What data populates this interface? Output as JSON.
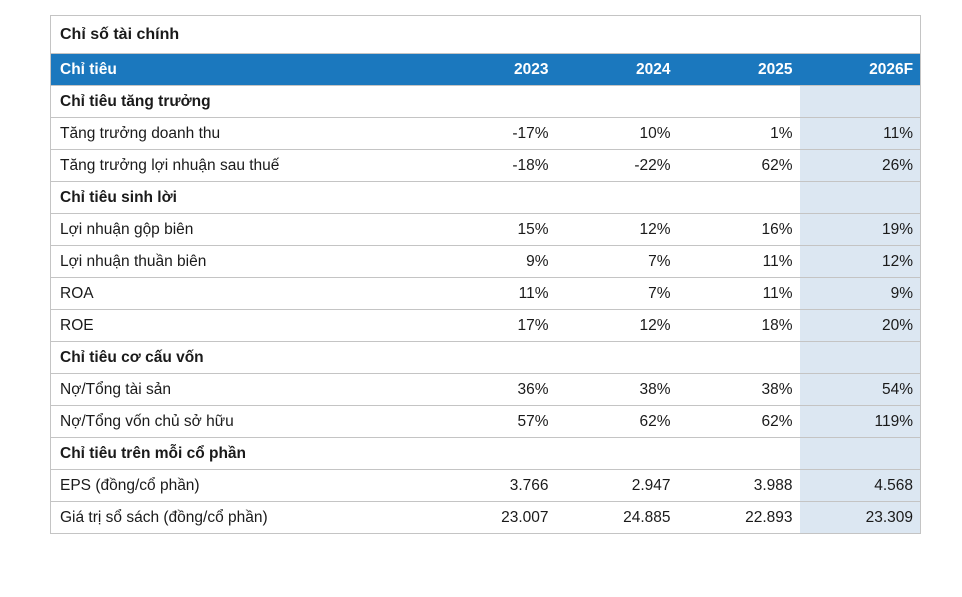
{
  "title": "Chỉ số tài chính",
  "colors": {
    "header_bg": "#1B78BE",
    "header_text": "#FFFFFF",
    "forecast_column_bg": "#DCE7F2",
    "row_border": "#C4C4C4",
    "text": "#1A1A1A"
  },
  "table": {
    "header": {
      "label": "Chỉ tiêu",
      "years": [
        "2023",
        "2024",
        "2025",
        "2026F"
      ]
    },
    "rows": [
      {
        "type": "section",
        "label": "Chỉ tiêu tăng trưởng",
        "values": [
          "",
          "",
          "",
          ""
        ]
      },
      {
        "type": "data",
        "label": "Tăng trưởng doanh thu",
        "values": [
          "-17%",
          "10%",
          "1%",
          "11%"
        ]
      },
      {
        "type": "data",
        "label": "Tăng trưởng lợi nhuận sau thuế",
        "values": [
          "-18%",
          "-22%",
          "62%",
          "26%"
        ]
      },
      {
        "type": "section",
        "label": "Chỉ tiêu sinh lời",
        "values": [
          "",
          "",
          "",
          ""
        ]
      },
      {
        "type": "data",
        "label": "Lợi nhuận gộp biên",
        "values": [
          "15%",
          "12%",
          "16%",
          "19%"
        ]
      },
      {
        "type": "data",
        "label": "Lợi nhuận thuần biên",
        "values": [
          "9%",
          "7%",
          "11%",
          "12%"
        ]
      },
      {
        "type": "data",
        "label": "ROA",
        "values": [
          "11%",
          "7%",
          "11%",
          "9%"
        ]
      },
      {
        "type": "data",
        "label": "ROE",
        "values": [
          "17%",
          "12%",
          "18%",
          "20%"
        ]
      },
      {
        "type": "section",
        "label": "Chỉ tiêu cơ cấu vốn",
        "values": [
          "",
          "",
          "",
          ""
        ]
      },
      {
        "type": "data",
        "label": "Nợ/Tổng tài sản",
        "values": [
          "36%",
          "38%",
          "38%",
          "54%"
        ]
      },
      {
        "type": "data",
        "label": "Nợ/Tổng vốn chủ sở hữu",
        "values": [
          "57%",
          "62%",
          "62%",
          "119%"
        ]
      },
      {
        "type": "section",
        "label": "Chỉ tiêu trên mỗi cổ phần",
        "values": [
          "",
          "",
          "",
          ""
        ]
      },
      {
        "type": "data",
        "label": "EPS (đồng/cổ phần)",
        "values": [
          "3.766",
          "2.947",
          "3.988",
          "4.568"
        ]
      },
      {
        "type": "data",
        "label": "Giá trị sổ sách (đồng/cổ phần)",
        "values": [
          "23.007",
          "24.885",
          "22.893",
          "23.309"
        ]
      }
    ]
  }
}
